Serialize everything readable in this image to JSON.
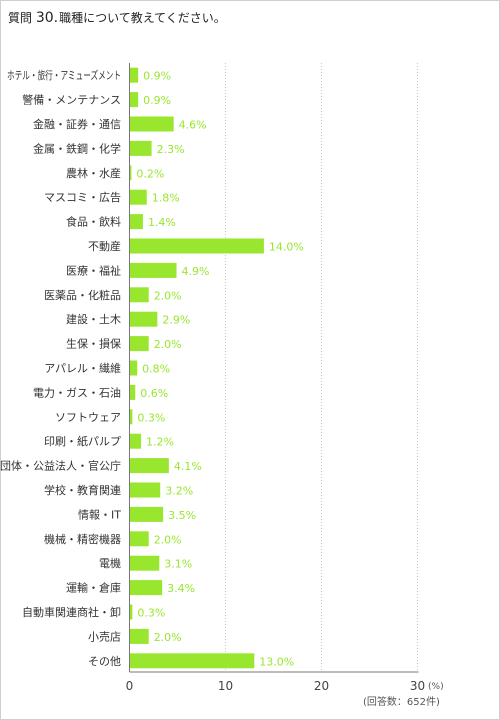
{
  "title": {
    "prefix": "質問",
    "number": "30.",
    "text": "職種について教えてください。"
  },
  "chart_data": {
    "type": "bar",
    "orientation": "horizontal",
    "categories": [
      "ホテル・旅行・アミューズメント",
      "警備・メンテナンス",
      "金融・証券・通信",
      "金属・鉄鋼・化学",
      "農林・水産",
      "マスコミ・広告",
      "食品・飲料",
      "不動産",
      "医療・福祉",
      "医薬品・化粧品",
      "建設・土木",
      "生保・損保",
      "アパレル・繊維",
      "電力・ガス・石油",
      "ソフトウェア",
      "印刷・紙パルプ",
      "団体・公益法人・官公庁",
      "学校・教育関連",
      "情報・IT",
      "機械・精密機器",
      "電機",
      "運輸・倉庫",
      "自動車関連商社・卸",
      "小売店",
      "その他"
    ],
    "values": [
      0.9,
      0.9,
      4.6,
      2.3,
      0.2,
      1.8,
      1.4,
      14.0,
      4.9,
      2.0,
      2.9,
      2.0,
      0.8,
      0.6,
      0.3,
      1.2,
      4.1,
      3.2,
      3.5,
      2.0,
      3.1,
      3.4,
      0.3,
      2.0,
      13.0
    ],
    "value_labels": [
      "0.9%",
      "0.9%",
      "4.6%",
      "2.3%",
      "0.2%",
      "1.8%",
      "1.4%",
      "14.0%",
      "4.9%",
      "2.0%",
      "2.9%",
      "2.0%",
      "0.8%",
      "0.6%",
      "0.3%",
      "1.2%",
      "4.1%",
      "3.2%",
      "3.5%",
      "2.0%",
      "3.1%",
      "3.4%",
      "0.3%",
      "2.0%",
      "13.0%"
    ],
    "xlim": [
      0,
      30
    ],
    "ticks": [
      "0",
      "10",
      "20",
      "30"
    ],
    "unit_label": "(%)",
    "note": "(回答数：652件)",
    "grid": true,
    "bar_color": "#99e62e"
  }
}
